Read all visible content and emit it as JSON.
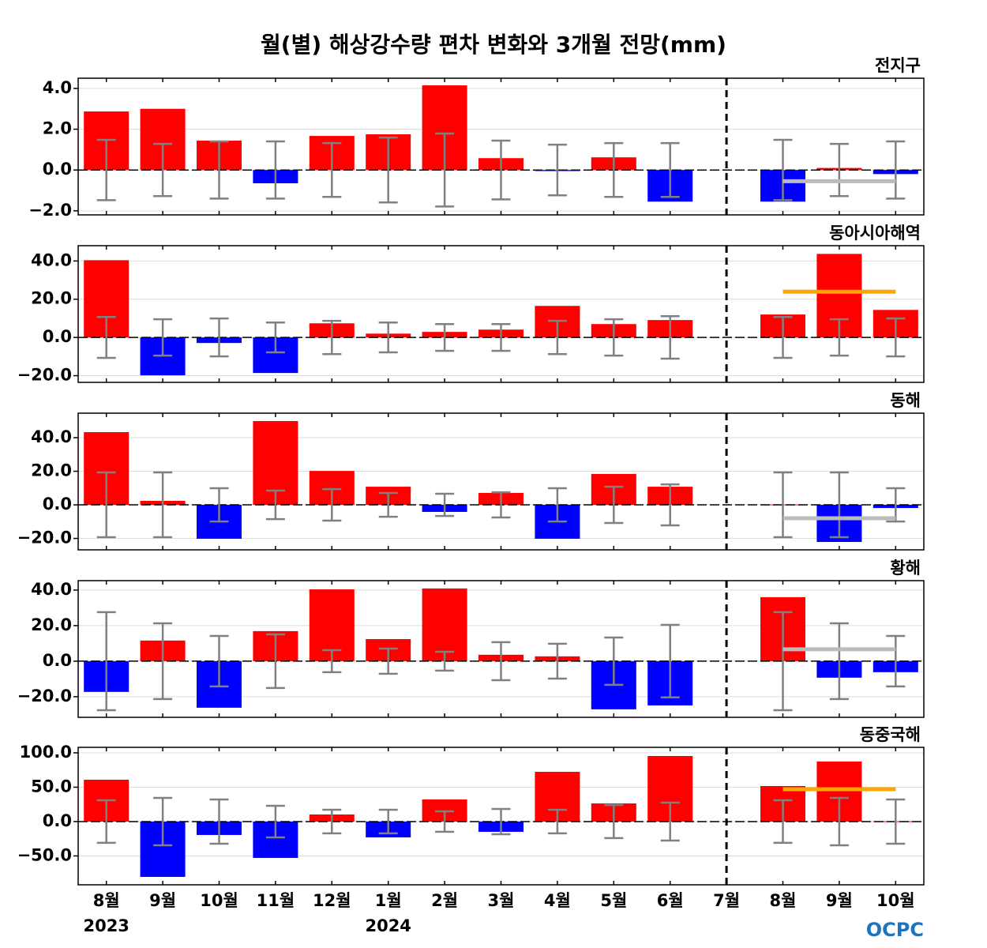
{
  "title": "월(별) 해상강수량 편차 변화와 3개월 전망(mm)",
  "logo": "OCPC",
  "chart_data": [
    {
      "type": "bar",
      "subtitle": "전지구",
      "positive_color": "#ff0000",
      "negative_color": "#0000ff",
      "error_color": "#808080",
      "forecast_color": "#bbbbbb",
      "values": [
        2.87,
        3.0,
        1.44,
        -0.65,
        1.67,
        1.75,
        4.15,
        0.58,
        -0.05,
        0.62,
        -1.55,
        null,
        -1.55,
        0.1,
        -0.2
      ],
      "errors": [
        1.48,
        1.28,
        1.4,
        1.4,
        1.32,
        1.59,
        1.79,
        1.44,
        1.24,
        1.32,
        1.32,
        null,
        1.48,
        1.28,
        1.4
      ],
      "forecast": -0.55,
      "ylim": [
        -2.2,
        4.5
      ],
      "yticks": [
        {
          "value": -2,
          "label": "−2.0"
        },
        {
          "value": 0,
          "label": "0.0"
        },
        {
          "value": 2,
          "label": "2.0"
        },
        {
          "value": 4,
          "label": "4.0"
        }
      ]
    },
    {
      "type": "bar",
      "subtitle": "동아시아해역",
      "positive_color": "#ff0000",
      "negative_color": "#0000ff",
      "error_color": "#808080",
      "forecast_color": "#ffa500",
      "values": [
        40.4,
        -19.8,
        -2.9,
        -18.6,
        7.4,
        2.0,
        2.9,
        4.1,
        16.5,
        7.0,
        9.1,
        null,
        12.0,
        43.7,
        14.4
      ],
      "errors": [
        10.7,
        9.5,
        9.9,
        7.8,
        8.7,
        7.8,
        7.0,
        7.0,
        8.7,
        9.5,
        11.1,
        null,
        10.7,
        9.5,
        9.9
      ],
      "forecast": 23.9,
      "ylim": [
        -23.5,
        48
      ],
      "yticks": [
        {
          "value": -20,
          "label": "−20.0"
        },
        {
          "value": 0,
          "label": "0.0"
        },
        {
          "value": 20,
          "label": "20.0"
        },
        {
          "value": 40,
          "label": "40.0"
        }
      ]
    },
    {
      "type": "bar",
      "subtitle": "동해",
      "positive_color": "#ff0000",
      "negative_color": "#0000ff",
      "error_color": "#808080",
      "forecast_color": "#bbbbbb",
      "values": [
        43.3,
        2.4,
        -20.2,
        49.9,
        20.2,
        10.8,
        -4.2,
        7.1,
        -20.2,
        18.4,
        10.8,
        null,
        0.2,
        -22.1,
        -1.9
      ],
      "errors": [
        19.3,
        19.3,
        9.9,
        8.5,
        9.4,
        7.1,
        6.6,
        7.5,
        9.9,
        10.8,
        12.2,
        null,
        19.3,
        19.3,
        9.9
      ],
      "forecast": -8,
      "ylim": [
        -26.8,
        54.6
      ],
      "yticks": [
        {
          "value": -20,
          "label": "−20.0"
        },
        {
          "value": 0,
          "label": "0.0"
        },
        {
          "value": 20,
          "label": "20.0"
        },
        {
          "value": 40,
          "label": "40.0"
        }
      ]
    },
    {
      "type": "bar",
      "subtitle": "황해",
      "positive_color": "#ff0000",
      "negative_color": "#0000ff",
      "error_color": "#808080",
      "forecast_color": "#bbbbbb",
      "values": [
        -17.3,
        11.6,
        -26.2,
        16.9,
        40.4,
        12.4,
        40.9,
        3.6,
        2.7,
        -27.1,
        -24.9,
        null,
        36.0,
        -9.3,
        -6.2
      ],
      "errors": [
        27.6,
        21.3,
        14.2,
        15.1,
        6.2,
        7.1,
        5.3,
        10.7,
        9.8,
        13.3,
        20.4,
        null,
        27.6,
        21.3,
        14.2
      ],
      "forecast": 6.7,
      "ylim": [
        -31.6,
        45.3
      ],
      "yticks": [
        {
          "value": -20,
          "label": "−20.0"
        },
        {
          "value": 0,
          "label": "0.0"
        },
        {
          "value": 20,
          "label": "20.0"
        },
        {
          "value": 40,
          "label": "40.0"
        }
      ]
    },
    {
      "type": "bar",
      "subtitle": "동중국해",
      "positive_color": "#ff0000",
      "negative_color": "#0000ff",
      "error_color": "#808080",
      "forecast_color": "#ffa500",
      "values": [
        60.9,
        -80.5,
        -19.5,
        -52.9,
        10.3,
        -23.0,
        32.2,
        -14.9,
        72.4,
        26.4,
        95.4,
        null,
        51.7,
        87.4,
        0.5
      ],
      "errors": [
        31.0,
        34.5,
        32.2,
        23.0,
        17.2,
        17.2,
        14.9,
        18.4,
        17.2,
        24.1,
        27.6,
        null,
        31.0,
        34.5,
        32.2
      ],
      "forecast": 47.1,
      "ylim": [
        -92,
        108
      ],
      "yticks": [
        {
          "value": -50,
          "label": "−50.0"
        },
        {
          "value": 0,
          "label": "0.0"
        },
        {
          "value": 50,
          "label": "50.0"
        },
        {
          "value": 100,
          "label": "100.0"
        }
      ],
      "categories": [
        "8월",
        "9월",
        "10월",
        "11월",
        "12월",
        "1월",
        "2월",
        "3월",
        "4월",
        "5월",
        "6월",
        "7월",
        "8월",
        "9월",
        "10월"
      ],
      "year_labels": [
        "2023",
        null,
        null,
        null,
        null,
        "2024",
        null,
        null,
        null,
        null,
        null,
        null,
        null,
        null,
        null
      ]
    }
  ]
}
